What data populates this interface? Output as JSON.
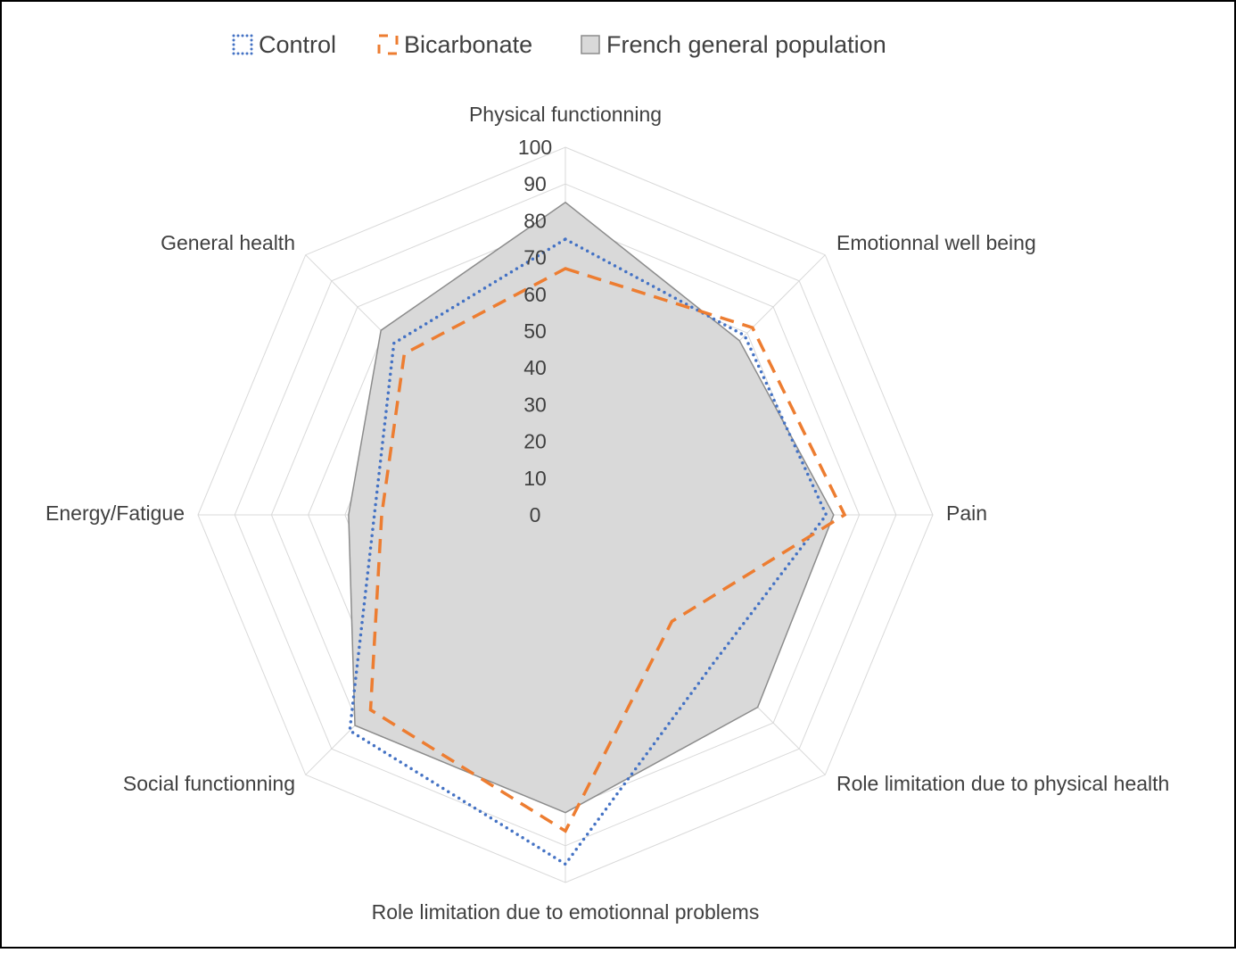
{
  "chart_data": {
    "type": "radar",
    "axes": [
      "Physical functionning",
      "Emotionnal well being",
      "Pain",
      "Role limitation due to physical health",
      "Role limitation due to emotionnal problems",
      "Social functionning",
      "Energy/Fatigue",
      "General health"
    ],
    "rlim": [
      0,
      100
    ],
    "ticks": [
      "0",
      "10",
      "20",
      "30",
      "40",
      "50",
      "60",
      "70",
      "80",
      "90",
      "100"
    ],
    "legend_position": "top",
    "series": [
      {
        "name": "Control",
        "style": "dotted",
        "color": "#4472C4",
        "values": [
          75,
          69,
          71,
          57,
          95,
          83,
          52,
          66
        ]
      },
      {
        "name": "Bicarbonate",
        "style": "dashed",
        "color": "#ED7D31",
        "values": [
          67,
          72,
          76,
          41,
          86,
          75,
          50,
          62
        ]
      },
      {
        "name": "French general population",
        "style": "filled",
        "color": "#D9D9D9",
        "values": [
          85,
          67,
          73,
          74,
          81,
          81,
          59,
          71
        ]
      }
    ]
  }
}
